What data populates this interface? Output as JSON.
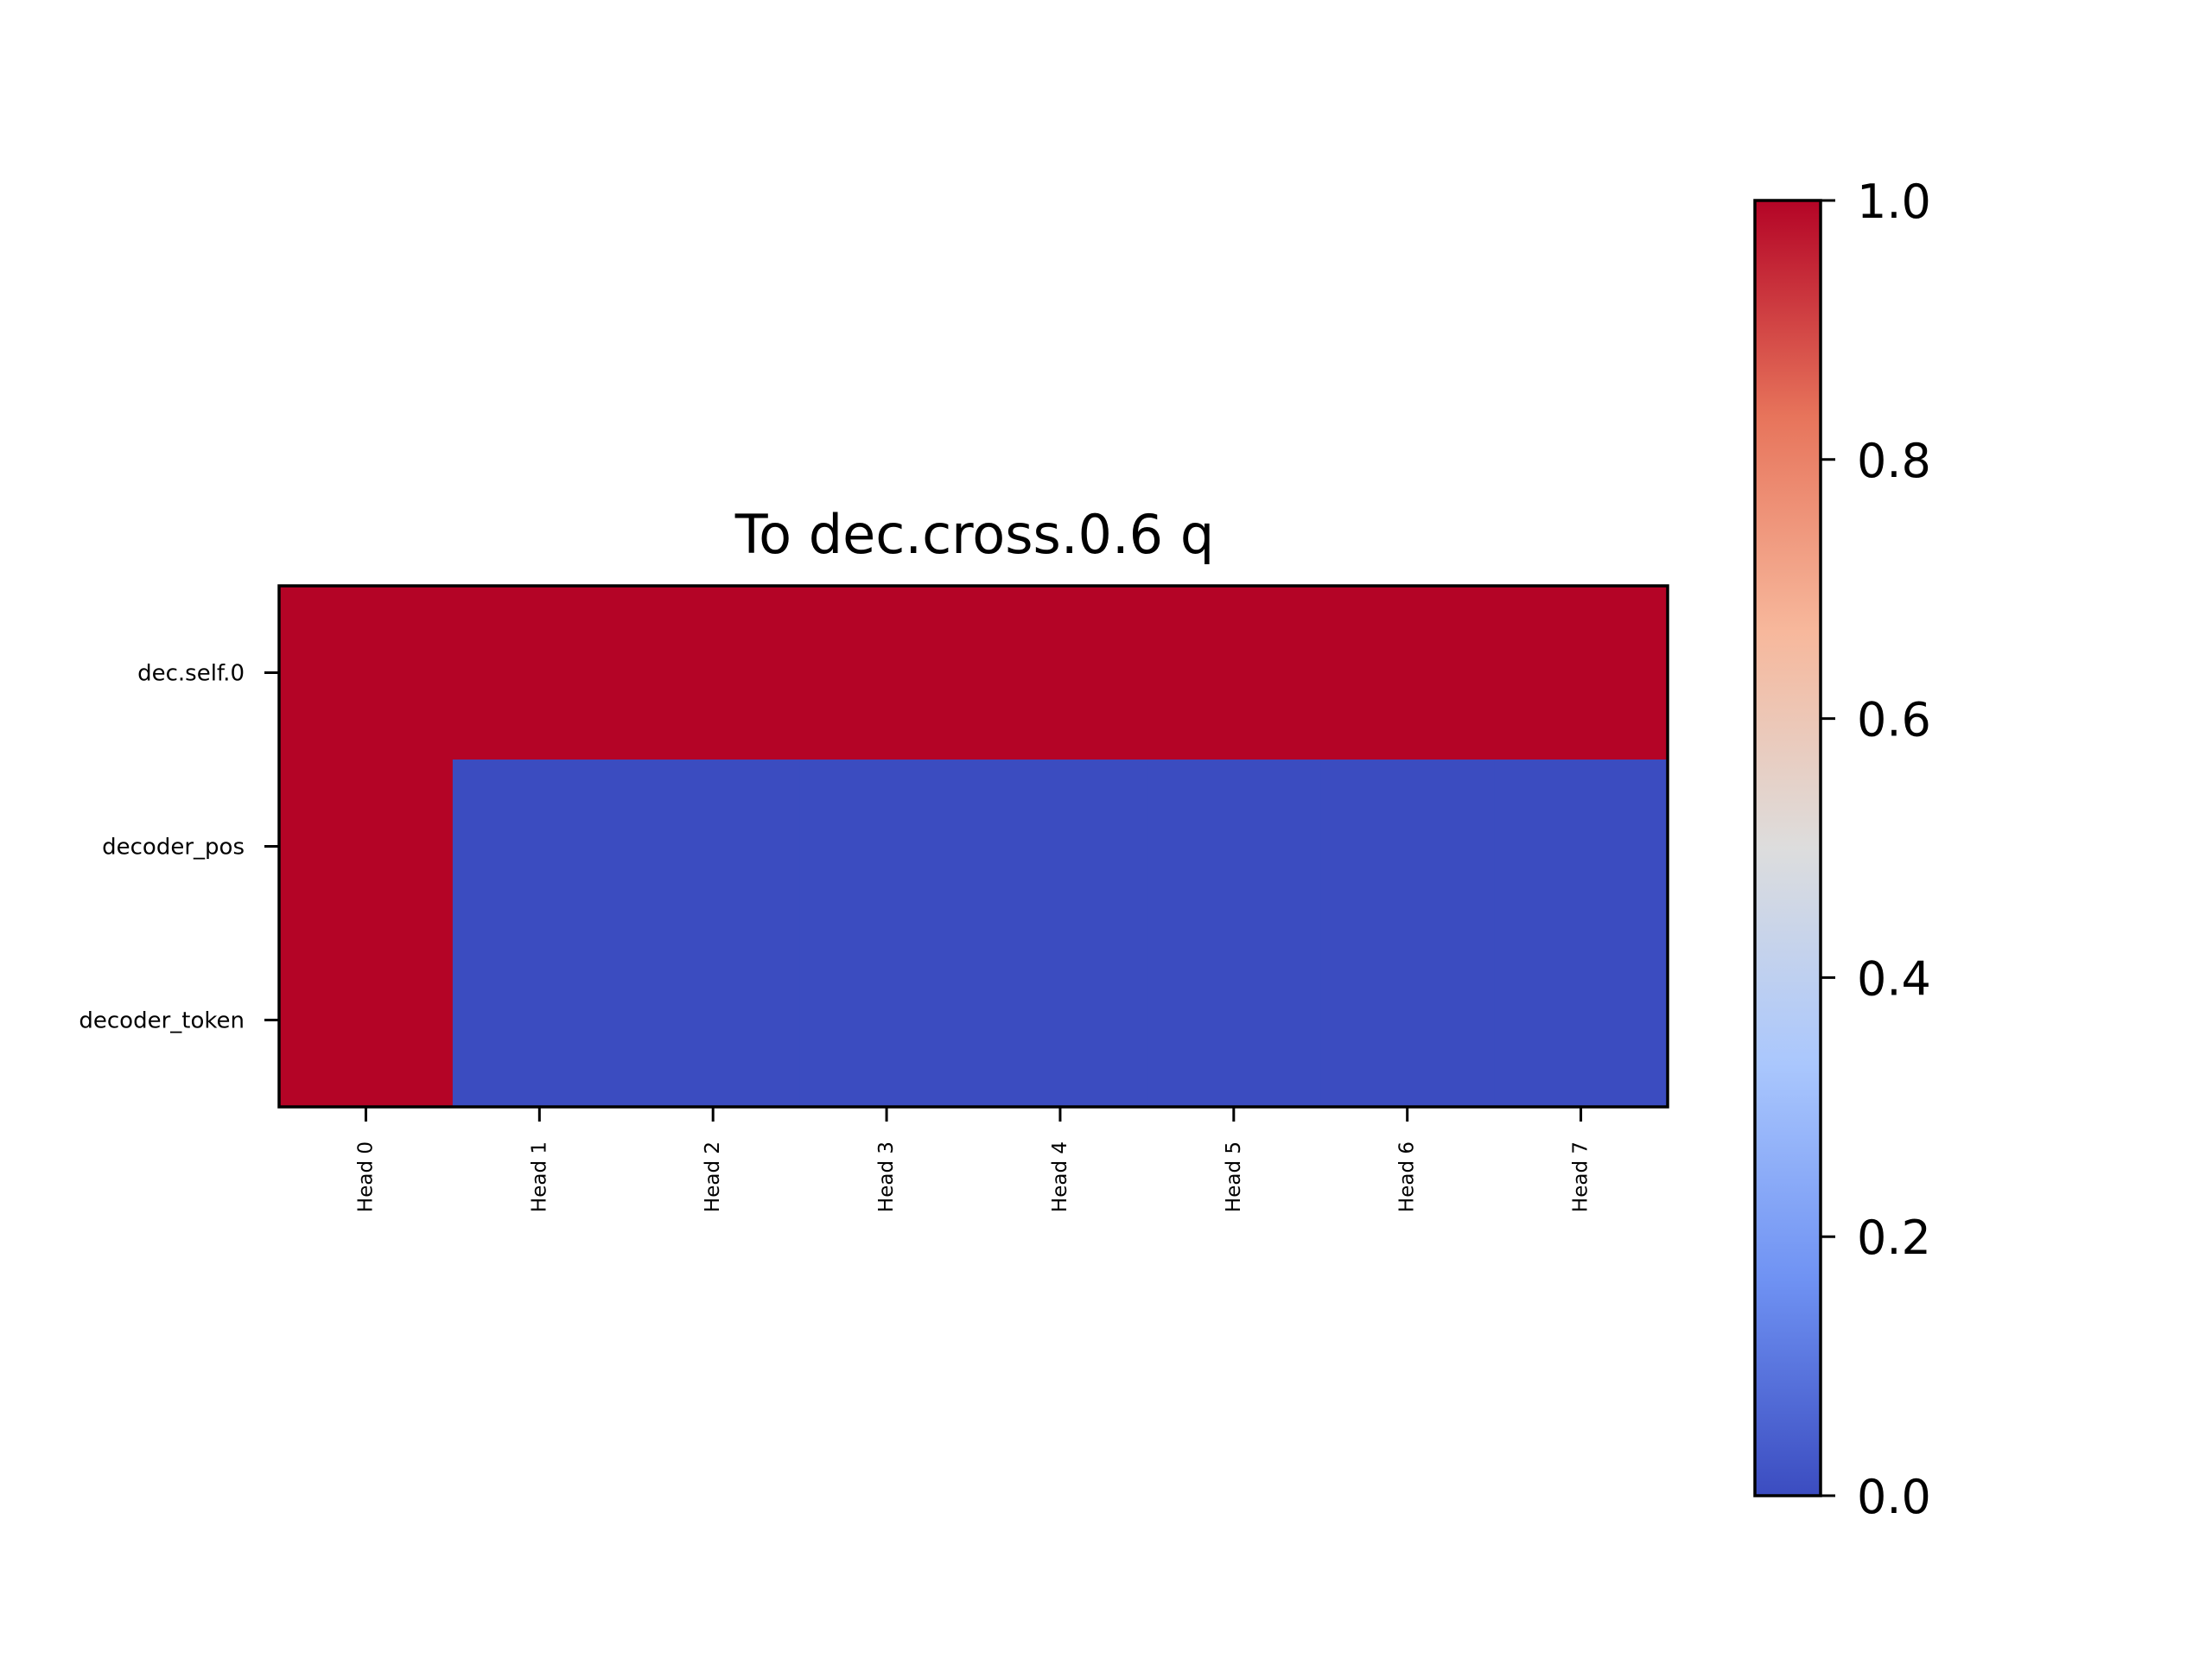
{
  "chart_data": {
    "type": "heatmap",
    "title": "To dec.cross.0.6 q",
    "x_categories": [
      "Head 0",
      "Head 1",
      "Head 2",
      "Head 3",
      "Head 4",
      "Head 5",
      "Head 6",
      "Head 7"
    ],
    "y_categories": [
      "dec.self.0",
      "decoder_pos",
      "decoder_token"
    ],
    "values": [
      [
        1,
        1,
        1,
        1,
        1,
        1,
        1,
        1
      ],
      [
        1,
        0,
        0,
        0,
        0,
        0,
        0,
        0
      ],
      [
        1,
        0,
        0,
        0,
        0,
        0,
        0,
        0
      ]
    ],
    "colormap": "coolwarm",
    "colormap_stops": [
      "#3b4cc0",
      "#6f92f3",
      "#aac7fd",
      "#dddddd",
      "#f7b89c",
      "#e7745b",
      "#b40426"
    ],
    "vmin": 0.0,
    "vmax": 1.0,
    "colorbar_ticks": [
      "0.0",
      "0.2",
      "0.4",
      "0.6",
      "0.8",
      "1.0"
    ],
    "colorbar_tick_values": [
      0.0,
      0.2,
      0.4,
      0.6,
      0.8,
      1.0
    ],
    "xlabel": "",
    "ylabel": "",
    "grid": false,
    "colorbar": "right"
  }
}
